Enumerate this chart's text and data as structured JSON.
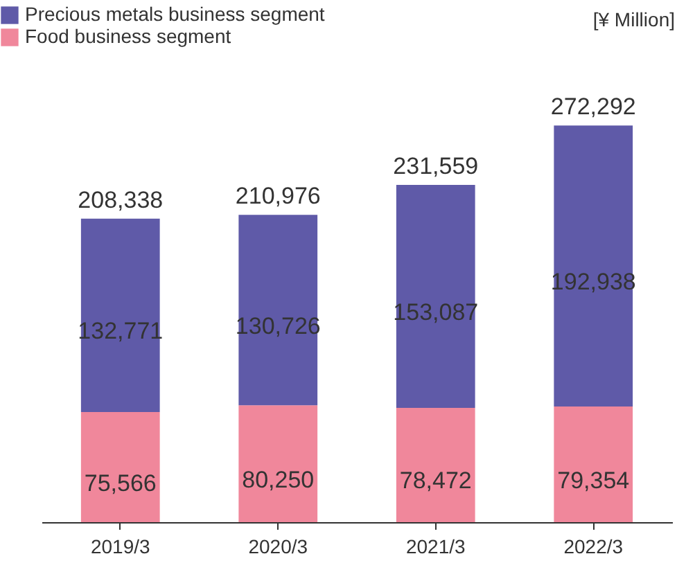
{
  "chart_data": {
    "type": "bar",
    "stacked": true,
    "categories": [
      "2019/3",
      "2020/3",
      "2021/3",
      "2022/3"
    ],
    "series": [
      {
        "name": "Food business segment",
        "color": "#f0879b",
        "values": [
          75566,
          80250,
          78472,
          79354
        ],
        "value_labels": [
          "75,566",
          "80,250",
          "78,472",
          "79,354"
        ]
      },
      {
        "name": "Precious metals business segment",
        "color": "#5f5aa8",
        "values": [
          132771,
          130726,
          153087,
          192938
        ],
        "value_labels": [
          "132,771",
          "130,726",
          "153,087",
          "192,938"
        ]
      }
    ],
    "totals": [
      "208,338",
      "210,976",
      "231,559",
      "272,292"
    ],
    "legend": "top left",
    "annotations": [
      "[¥ Million]"
    ]
  }
}
